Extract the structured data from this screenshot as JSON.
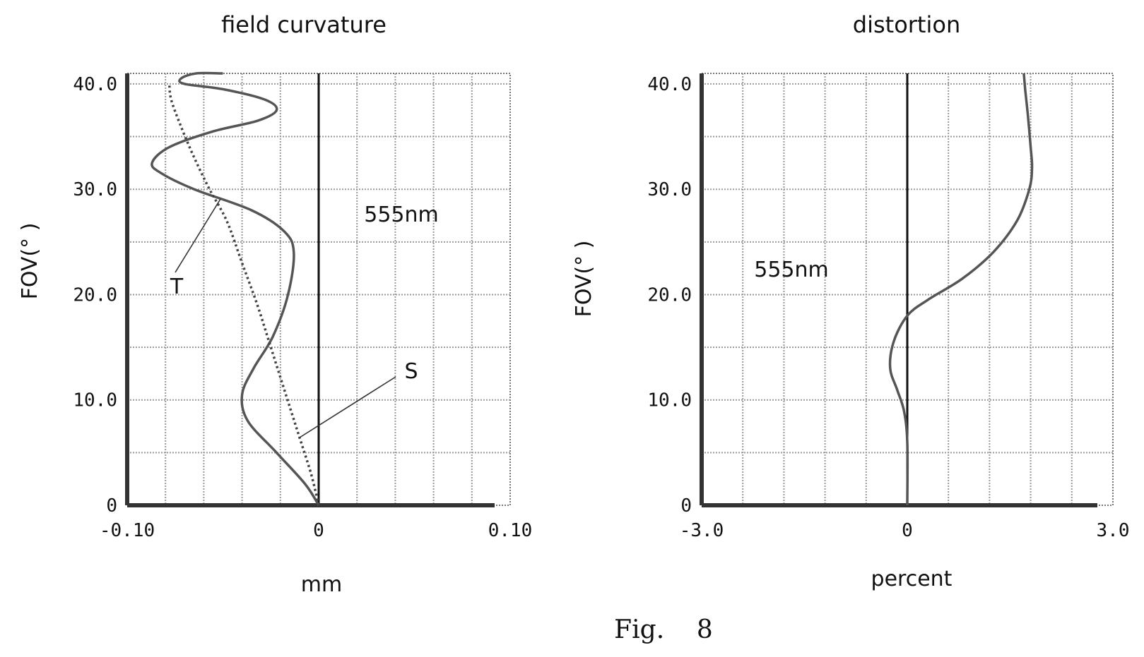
{
  "chart_data": [
    {
      "type": "line",
      "title": "field  curvature",
      "xlabel": "mm",
      "ylabel": "FOV(° )",
      "xlim": [
        -0.1,
        0.1
      ],
      "ylim": [
        0,
        41
      ],
      "x_ticks": [
        "-0.10",
        "0",
        "0.10"
      ],
      "y_ticks": [
        "0",
        "10.0",
        "20.0",
        "30.0",
        "40.0"
      ],
      "grid": true,
      "annotation": "555nm",
      "series": [
        {
          "name": "T",
          "style": "solid",
          "x": [
            0,
            -0.007,
            -0.022,
            -0.037,
            -0.04,
            -0.034,
            -0.024,
            -0.016,
            -0.013,
            -0.018,
            -0.035,
            -0.065,
            -0.082,
            -0.087,
            -0.078,
            -0.055,
            -0.032,
            -0.022,
            -0.028,
            -0.05,
            -0.07,
            -0.072,
            -0.064,
            -0.05
          ],
          "y": [
            0,
            2,
            5,
            8,
            10.5,
            13,
            16,
            20,
            24,
            26,
            28,
            30,
            31.5,
            32.5,
            34,
            35.5,
            36.5,
            37.5,
            38.5,
            39.5,
            40,
            40.5,
            41,
            41
          ]
        },
        {
          "name": "S",
          "style": "dotted",
          "x": [
            0,
            -0.004,
            -0.011,
            -0.018,
            -0.025,
            -0.032,
            -0.04,
            -0.048,
            -0.057,
            -0.065,
            -0.072,
            -0.077,
            -0.078
          ],
          "y": [
            0,
            3,
            7,
            11,
            15,
            19,
            23,
            27,
            30,
            33,
            36,
            38.5,
            40
          ]
        }
      ]
    },
    {
      "type": "line",
      "title": "distortion",
      "xlabel": "percent",
      "ylabel": "FOV(° )",
      "xlim": [
        -3.0,
        3.0
      ],
      "ylim": [
        0,
        41
      ],
      "x_ticks": [
        "-3.0",
        "0",
        "3.0"
      ],
      "y_ticks": [
        "0",
        "10.0",
        "20.0",
        "30.0",
        "40.0"
      ],
      "grid": true,
      "annotation": "555nm",
      "series": [
        {
          "name": "",
          "style": "solid",
          "x": [
            0,
            0,
            -0.05,
            -0.15,
            -0.25,
            -0.2,
            0,
            0.3,
            0.8,
            1.25,
            1.6,
            1.78,
            1.82,
            1.8,
            1.76,
            1.72,
            1.7
          ],
          "y": [
            0,
            6,
            9,
            11,
            13,
            15.5,
            18,
            19.5,
            21.5,
            24,
            27,
            30,
            32,
            34,
            37,
            39.5,
            41
          ]
        }
      ]
    }
  ],
  "labels": {
    "T": "T",
    "S": "S"
  },
  "caption": "Fig.    8"
}
